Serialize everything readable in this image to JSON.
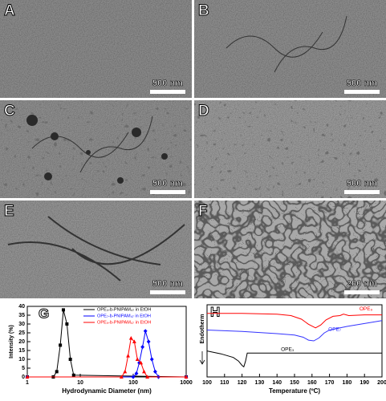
{
  "panels": [
    {
      "label": "A",
      "scale_bar": "500 nm"
    },
    {
      "label": "B",
      "scale_bar": "500 nm"
    },
    {
      "label": "C",
      "scale_bar": "500 nm"
    },
    {
      "label": "D",
      "scale_bar": "500 nm"
    },
    {
      "label": "E",
      "scale_bar": "500 nm"
    },
    {
      "label": "F",
      "scale_bar": "200 nm"
    }
  ],
  "chart_data": [
    {
      "type": "line",
      "panel_label": "G",
      "xlabel": "Hydrodynamic Diameter (nm)",
      "ylabel": "Intensity (%)",
      "log_x": true,
      "xlim": [
        1,
        1000
      ],
      "xticks": [
        1,
        10,
        100,
        1000
      ],
      "ylim": [
        0,
        40
      ],
      "yticks": [
        0,
        5,
        10,
        15,
        20,
        25,
        30,
        35,
        40
      ],
      "series": [
        {
          "name": "OPE₃-b-PNIPAM₄₇ in EtOH",
          "color": "#000000",
          "marker": "square",
          "x": [
            1,
            3.1,
            3.6,
            4.2,
            4.8,
            5.6,
            6.5,
            7.5,
            1000
          ],
          "values": [
            0,
            0,
            3,
            18,
            38,
            30,
            10,
            1,
            0
          ]
        },
        {
          "name": "OPE₇-b-PNIPAM₄₇ in EtOH",
          "color": "#0000ff",
          "marker": "diamond",
          "x": [
            1,
            100,
            115,
            130,
            150,
            170,
            195,
            225,
            260,
            300,
            1000
          ],
          "values": [
            0,
            0,
            2,
            8,
            17,
            26,
            20,
            10,
            3,
            0,
            0
          ]
        },
        {
          "name": "OPE₉-b-PNIPAM₄₇ in EtOH",
          "color": "#ff0000",
          "marker": "triangle",
          "x": [
            1,
            60,
            70,
            80,
            91,
            105,
            120,
            140,
            160,
            185,
            1000
          ],
          "values": [
            0,
            0,
            3,
            12,
            22,
            20,
            10,
            8,
            3,
            0,
            0
          ]
        }
      ]
    },
    {
      "type": "line",
      "panel_label": "H",
      "xlabel": "Temperature (ºC)",
      "ylabel": "Endotherm",
      "log_x": false,
      "xlim": [
        100,
        200
      ],
      "xticks": [
        100,
        110,
        120,
        130,
        140,
        150,
        160,
        170,
        180,
        190,
        200
      ],
      "ylim": [
        0,
        10
      ],
      "series": [
        {
          "name": "OPE₉",
          "color": "#ff0000",
          "x": [
            100,
            120,
            140,
            148,
            154,
            158,
            162,
            165,
            168,
            172,
            176,
            178,
            181,
            190,
            200
          ],
          "values": [
            8.8,
            8.8,
            8.7,
            8.5,
            8.0,
            7.3,
            6.8,
            7.2,
            7.9,
            8.4,
            8.5,
            8.7,
            8.5,
            8.6,
            8.6
          ]
        },
        {
          "name": "OPE₇",
          "color": "#3333ff",
          "x": [
            100,
            120,
            140,
            150,
            155,
            158,
            161,
            164,
            167,
            170,
            180,
            190,
            200
          ],
          "values": [
            6.5,
            6.3,
            6.0,
            5.8,
            5.5,
            5.1,
            5.0,
            5.4,
            6.1,
            6.5,
            7.0,
            7.4,
            7.8
          ]
        },
        {
          "name": "OPE₃",
          "color": "#000000",
          "x": [
            100,
            108,
            115,
            118,
            120,
            121,
            122,
            123,
            130,
            160,
            200
          ],
          "values": [
            3.6,
            3.2,
            2.7,
            2.2,
            1.6,
            1.4,
            2.2,
            3.3,
            3.3,
            3.3,
            3.3
          ]
        }
      ]
    }
  ]
}
